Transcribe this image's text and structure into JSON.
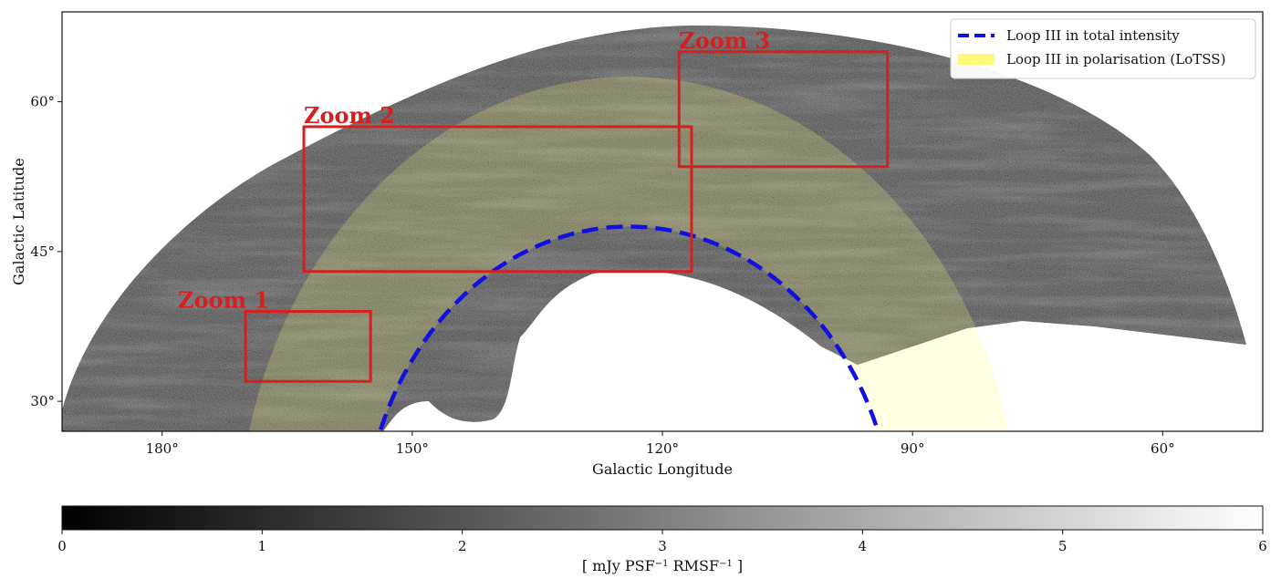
{
  "chart_data": {
    "type": "sky-map",
    "xlabel": "Galactic Longitude",
    "ylabel": "Galactic Latitude",
    "x_ticks": [
      "180°",
      "150°",
      "120°",
      "90°",
      "60°"
    ],
    "y_ticks": [
      "60°",
      "45°",
      "30°"
    ],
    "x_range_deg": [
      192,
      48
    ],
    "y_range_deg": [
      27,
      69
    ],
    "grid": false,
    "legend_position": "top-right",
    "legend": [
      {
        "label": "Loop III in total intensity",
        "style": "dashed-line",
        "color": "#1010e0"
      },
      {
        "label": "Loop III in polarisation (LoTSS)",
        "style": "filled-patch",
        "color": "#fdf97a"
      }
    ],
    "loop_iii_center": {
      "lon": 124,
      "lat": 15.5
    },
    "loop_iii_radius_deg": 32,
    "polarisation_band_radius_deg": [
      32,
      47
    ],
    "zooms": [
      {
        "label": "Zoom 1",
        "lon": [
          170,
          155
        ],
        "lat": [
          32,
          39
        ]
      },
      {
        "label": "Zoom 2",
        "lon": [
          163,
          116.5
        ],
        "lat": [
          43,
          57.5
        ]
      },
      {
        "label": "Zoom 3",
        "lon": [
          118,
          93
        ],
        "lat": [
          53.5,
          65
        ]
      }
    ],
    "colorbar": {
      "min": 0,
      "max": 6,
      "ticks": [
        "0",
        "1",
        "2",
        "3",
        "4",
        "5",
        "6"
      ],
      "label_prefix": "[ mJy PSF",
      "label_exp1": "−1",
      "label_mid": " RMSF",
      "label_exp2": "−1",
      "label_suffix": " ]",
      "colormap": "gray"
    },
    "colors": {
      "zoom_box": "#d61f1f",
      "loop_dashed": "#1010e0",
      "polarisation_fill": "#fdf97a"
    }
  }
}
